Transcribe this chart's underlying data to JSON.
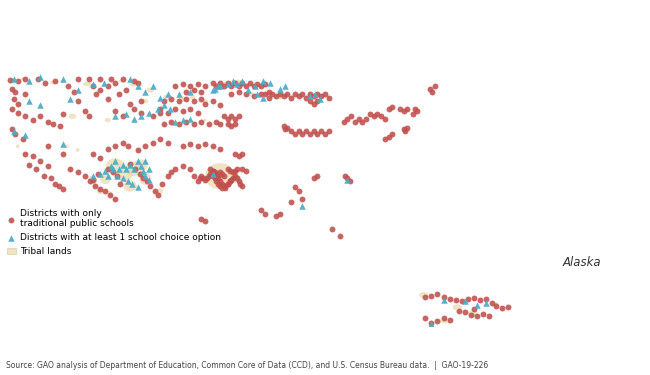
{
  "source_text": "Source: GAO analysis of Department of Education, Common Core of Data (CCD), and U.S. Census Bureau data.  |  GAO-19-226",
  "alaska_label": "Alaska",
  "background_color": "#ffffff",
  "state_border_color": "#b0b0b0",
  "state_fill_color": "#f5f5f0",
  "map_background": "#ffffff",
  "circle_color": "#c0504d",
  "triangle_color": "#4bacc6",
  "tribal_color": "#e8d5a3",
  "tribal_alpha": 0.65,
  "circle_size": 18,
  "triangle_size": 22,
  "circle_alpha": 0.88,
  "triangle_alpha": 0.92,
  "legend_circle_label": "Districts with only\ntraditional public schools",
  "legend_triangle_label": "Districts with at least 1 school choice option",
  "legend_tribal_label": "Tribal lands",
  "main_xlim": [
    -125,
    -66
  ],
  "main_ylim": [
    24.5,
    49.5
  ],
  "ak_xlim": [
    -180,
    -129
  ],
  "ak_ylim": [
    54,
    72
  ]
}
